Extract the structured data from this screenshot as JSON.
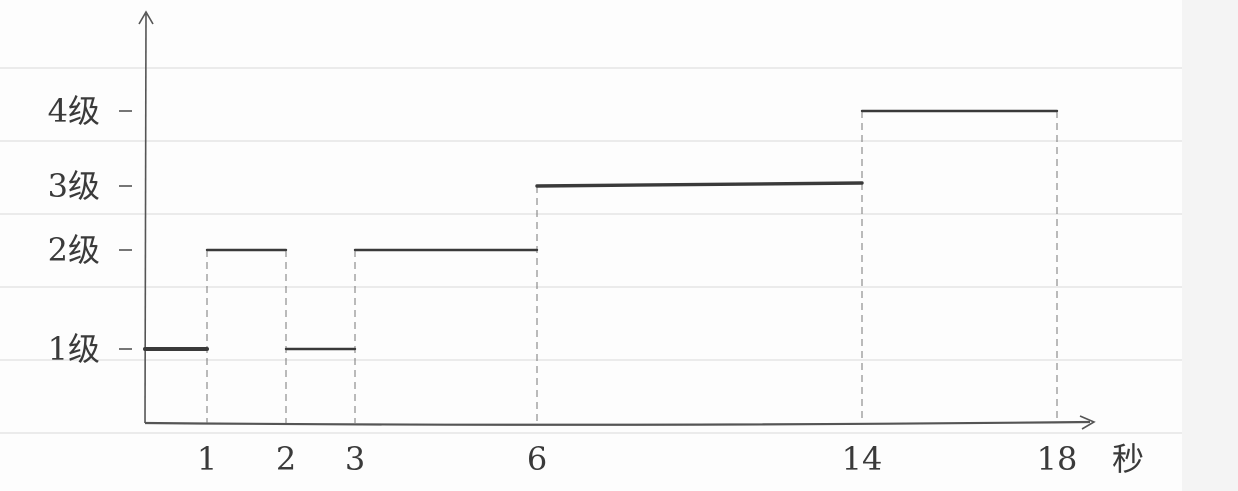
{
  "chart_data": {
    "type": "line",
    "style": "hand-drawn step chart on lined paper",
    "x_unit_label": "秒",
    "y_tick_labels": [
      "1级",
      "2级",
      "3级",
      "4级"
    ],
    "x_tick_labels": [
      "1",
      "2",
      "3",
      "6",
      "14",
      "18"
    ],
    "x_ticks": [
      1,
      2,
      3,
      6,
      14,
      18
    ],
    "xlim": [
      0,
      19
    ],
    "ylim": [
      0,
      4.5
    ],
    "steps": [
      {
        "x0": 0,
        "x1": 1,
        "y": 1
      },
      {
        "x0": 1,
        "x1": 2,
        "y": 2
      },
      {
        "x0": 2,
        "x1": 3,
        "y": 1
      },
      {
        "x0": 3,
        "x1": 6,
        "y": 2
      },
      {
        "x0": 6,
        "x1": 14,
        "y": 3
      },
      {
        "x0": 14,
        "x1": 18,
        "y": 4
      }
    ]
  }
}
